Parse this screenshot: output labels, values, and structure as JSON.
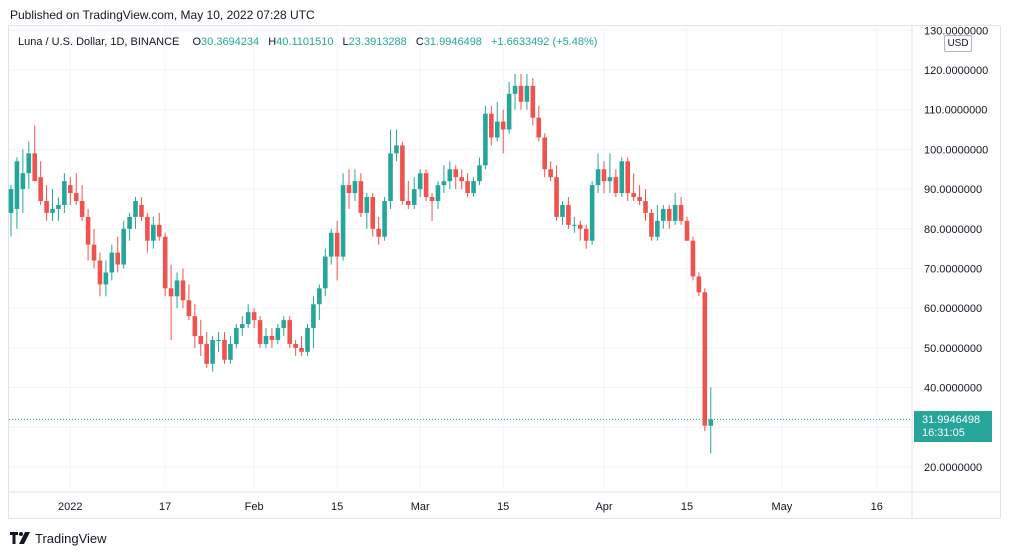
{
  "header": {
    "published_text": "Published on TradingView.com, May 10, 2022 07:28 UTC"
  },
  "legend": {
    "symbol": "Luna / U.S. Dollar, 1D, BINANCE",
    "open_label": "O",
    "open": "30.3694234",
    "high_label": "H",
    "high": "40.1101510",
    "low_label": "L",
    "low": "23.3913288",
    "close_label": "C",
    "close": "31.9946498",
    "change": "+1.6633492 (+5.48%)"
  },
  "price_axis": {
    "currency_badge": "USD"
  },
  "last_price": {
    "price": "31.9946498",
    "countdown": "16:31:05"
  },
  "footer": {
    "brand": "TradingView"
  },
  "colors": {
    "up": "#26a69a",
    "down": "#ef5350",
    "grid": "#f0f3fa",
    "axis_text": "#131722",
    "border": "#e0e3eb"
  },
  "chart_data": {
    "type": "candlestick",
    "title": "Luna / U.S. Dollar, 1D, BINANCE",
    "xlabel": "",
    "ylabel": "USD",
    "ylim": [
      10,
      130
    ],
    "y_ticks": [
      {
        "value": 20,
        "label": "20.0000000"
      },
      {
        "value": 30,
        "label": "30.0000000"
      },
      {
        "value": 40,
        "label": "40.0000000"
      },
      {
        "value": 50,
        "label": "50.0000000"
      },
      {
        "value": 60,
        "label": "60.0000000"
      },
      {
        "value": 70,
        "label": "70.0000000"
      },
      {
        "value": 80,
        "label": "80.0000000"
      },
      {
        "value": 90,
        "label": "90.0000000"
      },
      {
        "value": 100,
        "label": "100.0000000"
      },
      {
        "value": 110,
        "label": "110.0000000"
      },
      {
        "value": 120,
        "label": "120.0000000"
      },
      {
        "value": 130,
        "label": "130.0000000"
      }
    ],
    "x_ticks": [
      {
        "index": 10,
        "label": "2022"
      },
      {
        "index": 26,
        "label": "17"
      },
      {
        "index": 41,
        "label": "Feb"
      },
      {
        "index": 55,
        "label": "15"
      },
      {
        "index": 69,
        "label": "Mar"
      },
      {
        "index": 83,
        "label": "15"
      },
      {
        "index": 100,
        "label": "Apr"
      },
      {
        "index": 114,
        "label": "15"
      },
      {
        "index": 130,
        "label": "May"
      },
      {
        "index": 146,
        "label": "16"
      }
    ],
    "candles": [
      {
        "o": 84.0,
        "h": 91.0,
        "l": 78.0,
        "c": 90.0
      },
      {
        "o": 85.0,
        "h": 98.0,
        "l": 80.0,
        "c": 97.0
      },
      {
        "o": 90.0,
        "h": 100.0,
        "l": 84.0,
        "c": 94.0
      },
      {
        "o": 94.0,
        "h": 102.0,
        "l": 90.0,
        "c": 99.0
      },
      {
        "o": 99.0,
        "h": 106.0,
        "l": 92.0,
        "c": 92.0
      },
      {
        "o": 93.0,
        "h": 97.0,
        "l": 86.0,
        "c": 87.0
      },
      {
        "o": 87.0,
        "h": 91.0,
        "l": 82.0,
        "c": 84.0
      },
      {
        "o": 84.0,
        "h": 90.0,
        "l": 82.0,
        "c": 85.0
      },
      {
        "o": 85.0,
        "h": 88.0,
        "l": 82.0,
        "c": 86.0
      },
      {
        "o": 86.0,
        "h": 94.0,
        "l": 84.0,
        "c": 92.0
      },
      {
        "o": 91.0,
        "h": 93.0,
        "l": 86.0,
        "c": 89.0
      },
      {
        "o": 89.0,
        "h": 94.0,
        "l": 86.0,
        "c": 87.0
      },
      {
        "o": 87.0,
        "h": 91.0,
        "l": 82.0,
        "c": 83.0
      },
      {
        "o": 83.0,
        "h": 85.0,
        "l": 72.0,
        "c": 76.0
      },
      {
        "o": 76.0,
        "h": 80.0,
        "l": 70.0,
        "c": 72.0
      },
      {
        "o": 72.0,
        "h": 74.0,
        "l": 63.0,
        "c": 66.0
      },
      {
        "o": 66.0,
        "h": 72.0,
        "l": 63.0,
        "c": 69.0
      },
      {
        "o": 69.0,
        "h": 76.0,
        "l": 67.0,
        "c": 74.0
      },
      {
        "o": 74.0,
        "h": 78.0,
        "l": 69.0,
        "c": 71.0
      },
      {
        "o": 71.0,
        "h": 82.0,
        "l": 70.0,
        "c": 80.0
      },
      {
        "o": 80.0,
        "h": 84.0,
        "l": 77.0,
        "c": 83.0
      },
      {
        "o": 83.0,
        "h": 88.0,
        "l": 80.0,
        "c": 87.0
      },
      {
        "o": 86.0,
        "h": 88.0,
        "l": 82.0,
        "c": 83.0
      },
      {
        "o": 83.0,
        "h": 84.0,
        "l": 74.0,
        "c": 77.0
      },
      {
        "o": 77.0,
        "h": 83.0,
        "l": 75.0,
        "c": 81.0
      },
      {
        "o": 81.0,
        "h": 84.0,
        "l": 77.0,
        "c": 78.0
      },
      {
        "o": 78.0,
        "h": 79.0,
        "l": 63.0,
        "c": 65.0
      },
      {
        "o": 65.0,
        "h": 71.0,
        "l": 52.0,
        "c": 63.0
      },
      {
        "o": 63.0,
        "h": 69.0,
        "l": 60.0,
        "c": 67.0
      },
      {
        "o": 67.0,
        "h": 70.0,
        "l": 60.0,
        "c": 62.0
      },
      {
        "o": 62.0,
        "h": 66.0,
        "l": 57.0,
        "c": 58.0
      },
      {
        "o": 58.0,
        "h": 61.0,
        "l": 50.0,
        "c": 53.0
      },
      {
        "o": 53.0,
        "h": 57.0,
        "l": 48.0,
        "c": 51.0
      },
      {
        "o": 51.0,
        "h": 54.0,
        "l": 45.0,
        "c": 46.0
      },
      {
        "o": 46.0,
        "h": 53.0,
        "l": 44.0,
        "c": 52.0
      },
      {
        "o": 52.0,
        "h": 54.0,
        "l": 49.0,
        "c": 52.0
      },
      {
        "o": 52.0,
        "h": 54.0,
        "l": 46.0,
        "c": 47.0
      },
      {
        "o": 47.0,
        "h": 53.0,
        "l": 46.0,
        "c": 51.0
      },
      {
        "o": 51.0,
        "h": 56.0,
        "l": 50.0,
        "c": 55.0
      },
      {
        "o": 55.0,
        "h": 58.0,
        "l": 53.0,
        "c": 56.0
      },
      {
        "o": 56.0,
        "h": 61.0,
        "l": 55.0,
        "c": 59.0
      },
      {
        "o": 59.0,
        "h": 60.0,
        "l": 55.0,
        "c": 57.0
      },
      {
        "o": 57.0,
        "h": 58.0,
        "l": 50.0,
        "c": 51.0
      },
      {
        "o": 51.0,
        "h": 55.0,
        "l": 50.0,
        "c": 53.0
      },
      {
        "o": 53.0,
        "h": 55.0,
        "l": 50.0,
        "c": 52.0
      },
      {
        "o": 52.0,
        "h": 56.0,
        "l": 51.0,
        "c": 55.0
      },
      {
        "o": 55.0,
        "h": 58.0,
        "l": 53.0,
        "c": 57.0
      },
      {
        "o": 57.0,
        "h": 58.0,
        "l": 50.0,
        "c": 51.0
      },
      {
        "o": 51.0,
        "h": 52.0,
        "l": 48.0,
        "c": 50.0
      },
      {
        "o": 50.0,
        "h": 53.0,
        "l": 48.0,
        "c": 49.0
      },
      {
        "o": 49.0,
        "h": 56.0,
        "l": 48.0,
        "c": 55.0
      },
      {
        "o": 55.0,
        "h": 63.0,
        "l": 50.0,
        "c": 61.0
      },
      {
        "o": 61.0,
        "h": 66.0,
        "l": 57.0,
        "c": 65.0
      },
      {
        "o": 65.0,
        "h": 75.0,
        "l": 63.0,
        "c": 73.0
      },
      {
        "o": 73.0,
        "h": 80.0,
        "l": 71.0,
        "c": 79.0
      },
      {
        "o": 79.0,
        "h": 82.0,
        "l": 67.0,
        "c": 73.0
      },
      {
        "o": 73.0,
        "h": 94.0,
        "l": 72.0,
        "c": 91.0
      },
      {
        "o": 91.0,
        "h": 95.0,
        "l": 85.0,
        "c": 89.0
      },
      {
        "o": 89.0,
        "h": 95.0,
        "l": 87.0,
        "c": 92.0
      },
      {
        "o": 92.0,
        "h": 94.0,
        "l": 83.0,
        "c": 84.0
      },
      {
        "o": 84.0,
        "h": 89.0,
        "l": 80.0,
        "c": 88.0
      },
      {
        "o": 88.0,
        "h": 89.0,
        "l": 78.0,
        "c": 80.0
      },
      {
        "o": 80.0,
        "h": 83.0,
        "l": 76.0,
        "c": 78.0
      },
      {
        "o": 78.0,
        "h": 88.0,
        "l": 77.0,
        "c": 87.0
      },
      {
        "o": 87.0,
        "h": 105.0,
        "l": 85.0,
        "c": 99.0
      },
      {
        "o": 99.0,
        "h": 105.0,
        "l": 97.0,
        "c": 101.0
      },
      {
        "o": 101.0,
        "h": 102.0,
        "l": 86.0,
        "c": 87.0
      },
      {
        "o": 87.0,
        "h": 92.0,
        "l": 85.0,
        "c": 86.0
      },
      {
        "o": 86.0,
        "h": 93.0,
        "l": 85.0,
        "c": 90.0
      },
      {
        "o": 90.0,
        "h": 95.0,
        "l": 88.0,
        "c": 94.0
      },
      {
        "o": 94.0,
        "h": 95.0,
        "l": 87.0,
        "c": 88.0
      },
      {
        "o": 88.0,
        "h": 89.0,
        "l": 82.0,
        "c": 87.0
      },
      {
        "o": 87.0,
        "h": 92.0,
        "l": 85.0,
        "c": 91.0
      },
      {
        "o": 91.0,
        "h": 96.0,
        "l": 89.0,
        "c": 92.0
      },
      {
        "o": 92.0,
        "h": 97.0,
        "l": 90.0,
        "c": 95.0
      },
      {
        "o": 95.0,
        "h": 96.0,
        "l": 90.0,
        "c": 93.0
      },
      {
        "o": 93.0,
        "h": 95.0,
        "l": 90.0,
        "c": 92.0
      },
      {
        "o": 92.0,
        "h": 94.0,
        "l": 88.0,
        "c": 89.0
      },
      {
        "o": 89.0,
        "h": 93.0,
        "l": 88.0,
        "c": 92.0
      },
      {
        "o": 92.0,
        "h": 98.0,
        "l": 91.0,
        "c": 96.0
      },
      {
        "o": 96.0,
        "h": 111.0,
        "l": 95.0,
        "c": 109.0
      },
      {
        "o": 109.0,
        "h": 111.0,
        "l": 101.0,
        "c": 103.0
      },
      {
        "o": 103.0,
        "h": 112.0,
        "l": 102.0,
        "c": 107.0
      },
      {
        "o": 107.0,
        "h": 110.0,
        "l": 99.0,
        "c": 105.0
      },
      {
        "o": 105.0,
        "h": 117.0,
        "l": 104.0,
        "c": 114.0
      },
      {
        "o": 114.0,
        "h": 119.0,
        "l": 110.0,
        "c": 116.0
      },
      {
        "o": 116.0,
        "h": 119.0,
        "l": 110.0,
        "c": 112.0
      },
      {
        "o": 112.0,
        "h": 119.0,
        "l": 110.0,
        "c": 116.0
      },
      {
        "o": 116.0,
        "h": 118.0,
        "l": 106.0,
        "c": 108.0
      },
      {
        "o": 108.0,
        "h": 111.0,
        "l": 102.0,
        "c": 103.0
      },
      {
        "o": 103.0,
        "h": 104.0,
        "l": 93.0,
        "c": 95.0
      },
      {
        "o": 95.0,
        "h": 97.0,
        "l": 92.0,
        "c": 93.0
      },
      {
        "o": 93.0,
        "h": 96.0,
        "l": 82.0,
        "c": 83.0
      },
      {
        "o": 83.0,
        "h": 87.0,
        "l": 81.0,
        "c": 86.0
      },
      {
        "o": 86.0,
        "h": 88.0,
        "l": 80.0,
        "c": 81.0
      },
      {
        "o": 81.0,
        "h": 83.0,
        "l": 79.0,
        "c": 81.0
      },
      {
        "o": 81.0,
        "h": 82.0,
        "l": 77.0,
        "c": 80.0
      },
      {
        "o": 80.0,
        "h": 81.0,
        "l": 75.0,
        "c": 77.0
      },
      {
        "o": 77.0,
        "h": 92.0,
        "l": 76.0,
        "c": 91.0
      },
      {
        "o": 91.0,
        "h": 99.0,
        "l": 89.0,
        "c": 95.0
      },
      {
        "o": 95.0,
        "h": 97.0,
        "l": 89.0,
        "c": 92.0
      },
      {
        "o": 92.0,
        "h": 99.0,
        "l": 89.0,
        "c": 93.0
      },
      {
        "o": 93.0,
        "h": 95.0,
        "l": 88.0,
        "c": 89.0
      },
      {
        "o": 89.0,
        "h": 98.0,
        "l": 88.0,
        "c": 97.0
      },
      {
        "o": 97.0,
        "h": 98.0,
        "l": 87.0,
        "c": 89.0
      },
      {
        "o": 89.0,
        "h": 94.0,
        "l": 87.0,
        "c": 88.0
      },
      {
        "o": 88.0,
        "h": 91.0,
        "l": 86.0,
        "c": 87.0
      },
      {
        "o": 87.0,
        "h": 90.0,
        "l": 82.0,
        "c": 84.0
      },
      {
        "o": 84.0,
        "h": 85.0,
        "l": 77.0,
        "c": 78.0
      },
      {
        "o": 78.0,
        "h": 86.0,
        "l": 77.0,
        "c": 82.0
      },
      {
        "o": 82.0,
        "h": 86.0,
        "l": 80.0,
        "c": 85.0
      },
      {
        "o": 85.0,
        "h": 86.0,
        "l": 80.0,
        "c": 82.0
      },
      {
        "o": 82.0,
        "h": 89.0,
        "l": 81.0,
        "c": 86.0
      },
      {
        "o": 86.0,
        "h": 88.0,
        "l": 81.0,
        "c": 82.0
      },
      {
        "o": 82.0,
        "h": 83.0,
        "l": 77.0,
        "c": 77.0
      },
      {
        "o": 77.0,
        "h": 78.0,
        "l": 67.0,
        "c": 68.0
      },
      {
        "o": 68.0,
        "h": 69.0,
        "l": 63.0,
        "c": 64.0
      },
      {
        "o": 64.0,
        "h": 65.0,
        "l": 29.0,
        "c": 30.4
      },
      {
        "o": 30.37,
        "h": 40.11,
        "l": 23.39,
        "c": 31.99
      }
    ]
  }
}
